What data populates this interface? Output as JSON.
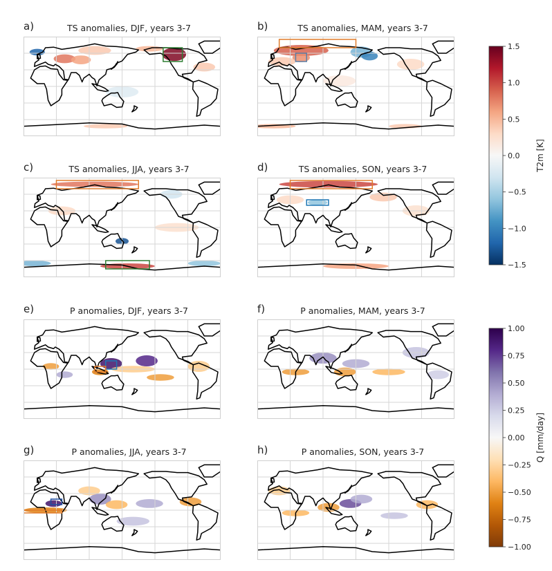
{
  "chart_data": [
    {
      "type": "heatmap",
      "panel": "a)",
      "title": "TS anomalies, DJF, years 3-7",
      "variable": "TS",
      "colorbar": "temperature",
      "boxes": [
        {
          "color": "#2e7d32",
          "lon": [
            225,
            260
          ],
          "lat": [
            45,
            70
          ]
        }
      ]
    },
    {
      "type": "heatmap",
      "panel": "b)",
      "title": "TS anomalies, MAM, years 3-7",
      "variable": "TS",
      "colorbar": "temperature",
      "boxes": [
        {
          "color": "#e07b2a",
          "lon": [
            10,
            150
          ],
          "lat": [
            70,
            85
          ]
        },
        {
          "color": "#5b7fa6",
          "lon": [
            40,
            60
          ],
          "lat": [
            45,
            60
          ]
        }
      ]
    },
    {
      "type": "heatmap",
      "panel": "c)",
      "title": "TS anomalies, JJA, years 3-7",
      "variable": "TS",
      "colorbar": "temperature",
      "boxes": [
        {
          "color": "#e07b2a",
          "lon": [
            30,
            180
          ],
          "lat": [
            70,
            85
          ]
        },
        {
          "color": "#2e7d32",
          "lon": [
            120,
            200
          ],
          "lat": [
            -75,
            -60
          ]
        }
      ]
    },
    {
      "type": "heatmap",
      "panel": "d)",
      "title": "TS anomalies, SON, years 3-7",
      "variable": "TS",
      "colorbar": "temperature",
      "boxes": [
        {
          "color": "#e07b2a",
          "lon": [
            30,
            180
          ],
          "lat": [
            70,
            85
          ]
        },
        {
          "color": "#1f77b4",
          "lon": [
            60,
            100
          ],
          "lat": [
            40,
            50
          ]
        }
      ]
    },
    {
      "type": "heatmap",
      "panel": "e)",
      "title": "P anomalies, DJF, years 3-7",
      "variable": "P",
      "colorbar": "precipitation",
      "boxes": [
        {
          "color": "#1f77b4",
          "lon": [
            120,
            140
          ],
          "lat": [
            0,
            15
          ]
        },
        {
          "color": "#e07b2a",
          "lon": [
            100,
            120
          ],
          "lat": [
            -5,
            5
          ]
        }
      ]
    },
    {
      "type": "heatmap",
      "panel": "f)",
      "title": "P anomalies, MAM, years 3-7",
      "variable": "P",
      "colorbar": "precipitation",
      "boxes": []
    },
    {
      "type": "heatmap",
      "panel": "g)",
      "title": "P anomalies, JJA, years 3-7",
      "variable": "P",
      "colorbar": "precipitation",
      "boxes": [
        {
          "color": "#1f4fa0",
          "lon": [
            20,
            40
          ],
          "lat": [
            10,
            20
          ]
        },
        {
          "color": "#e07b2a",
          "lon": [
            -40,
            40
          ],
          "lat": [
            -5,
            0
          ]
        }
      ]
    },
    {
      "type": "heatmap",
      "panel": "h)",
      "title": "P anomalies, SON, years 3-7",
      "variable": "P",
      "colorbar": "precipitation",
      "boxes": []
    }
  ],
  "colorbars": {
    "temperature": {
      "label": "T2m [K]",
      "range": [
        -1.5,
        1.5
      ],
      "ticks": [
        "−1.5",
        "−1.0",
        "−0.5",
        "0.0",
        "0.5",
        "1.0",
        "1.5"
      ],
      "colormap": "RdBu_r",
      "colors": [
        "#053061",
        "#2166ac",
        "#4393c3",
        "#92c5de",
        "#d1e5f0",
        "#f7f7f7",
        "#fddbc7",
        "#f4a582",
        "#d6604d",
        "#b2182b",
        "#67001f"
      ]
    },
    "precipitation": {
      "label": "Q [mm/day]",
      "range": [
        -1.0,
        1.0
      ],
      "ticks": [
        "−1.00",
        "−0.75",
        "−0.50",
        "−0.25",
        "0.00",
        "0.25",
        "0.50",
        "0.75",
        "1.00"
      ],
      "colormap": "PuOr",
      "colors": [
        "#7f3b08",
        "#b35806",
        "#e08214",
        "#fdb863",
        "#fee0b6",
        "#f7f7f7",
        "#d8daeb",
        "#b2abd2",
        "#8073ac",
        "#542788",
        "#2d004b"
      ]
    }
  }
}
